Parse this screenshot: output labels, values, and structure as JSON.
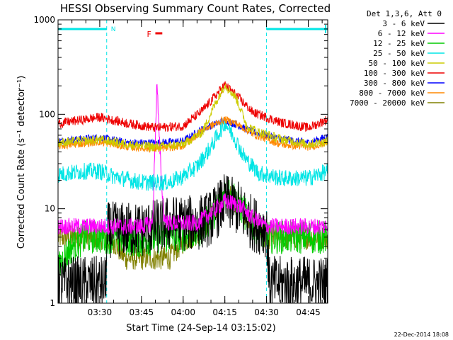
{
  "chart_data": {
    "type": "line",
    "title": "HESSI Observing Summary Count Rates, Corrected",
    "xlabel": "Start Time (24-Sep-14 03:15:02)",
    "ylabel": "Corrected Count Rate (s⁻¹ detector⁻¹)",
    "ylog": true,
    "ylim": [
      1,
      1000
    ],
    "xlim_minutes": [
      0,
      97
    ],
    "y_ticks": [
      "1",
      "10",
      "100",
      "1000"
    ],
    "x_ticks": [
      {
        "label": "03:30",
        "minutes": 15
      },
      {
        "label": "03:45",
        "minutes": 30
      },
      {
        "label": "04:00",
        "minutes": 45
      },
      {
        "label": "04:15",
        "minutes": 60
      },
      {
        "label": "04:30",
        "minutes": 75
      },
      {
        "label": "04:45",
        "minutes": 90
      }
    ],
    "legend_header": "Det 1,3,6, Att 0",
    "legend_position": "right",
    "night_intervals_minutes": [
      [
        0,
        17.5
      ],
      [
        75,
        97
      ]
    ],
    "night_label": "N",
    "flare_label": "F",
    "flare_interval_minutes": [
      35,
      37.5
    ],
    "series": [
      {
        "name": "3 - 6 keV",
        "color": "#000000",
        "noise": 0.3,
        "points": [
          [
            0,
            1.6
          ],
          [
            17,
            1.6
          ],
          [
            18,
            6
          ],
          [
            30,
            6
          ],
          [
            36,
            6.5
          ],
          [
            40,
            7
          ],
          [
            50,
            7
          ],
          [
            55,
            8
          ],
          [
            60,
            12
          ],
          [
            65,
            10
          ],
          [
            70,
            7
          ],
          [
            75,
            6
          ],
          [
            76,
            1.6
          ],
          [
            97,
            1.6
          ]
        ]
      },
      {
        "name": "6 - 12 keV",
        "color": "#ff00ff",
        "noise": 0.09,
        "points": [
          [
            0,
            6.5
          ],
          [
            30,
            6.5
          ],
          [
            34,
            7
          ],
          [
            35,
            60
          ],
          [
            35.6,
            230
          ],
          [
            36.3,
            60
          ],
          [
            37.5,
            15
          ],
          [
            38,
            8
          ],
          [
            40,
            7
          ],
          [
            50,
            7
          ],
          [
            55,
            9
          ],
          [
            60,
            12
          ],
          [
            65,
            11
          ],
          [
            70,
            8
          ],
          [
            75,
            6.5
          ],
          [
            97,
            6.5
          ]
        ]
      },
      {
        "name": "12 - 25 keV",
        "color": "#00cc00",
        "noise": 0.18,
        "points": [
          [
            0,
            2.2
          ],
          [
            2,
            3
          ],
          [
            5,
            4
          ],
          [
            10,
            5
          ],
          [
            15,
            5
          ],
          [
            20,
            5
          ],
          [
            30,
            4.5
          ],
          [
            36,
            5
          ],
          [
            40,
            5
          ],
          [
            50,
            5.5
          ],
          [
            55,
            8
          ],
          [
            60,
            15
          ],
          [
            63,
            14
          ],
          [
            67,
            9
          ],
          [
            72,
            6
          ],
          [
            75,
            5
          ],
          [
            97,
            5
          ]
        ]
      },
      {
        "name": "25 - 50 keV",
        "color": "#00e5e5",
        "noise": 0.09,
        "points": [
          [
            0,
            23
          ],
          [
            10,
            25
          ],
          [
            15,
            25
          ],
          [
            20,
            22
          ],
          [
            30,
            19
          ],
          [
            40,
            19
          ],
          [
            45,
            22
          ],
          [
            50,
            28
          ],
          [
            55,
            45
          ],
          [
            60,
            82
          ],
          [
            63,
            60
          ],
          [
            67,
            35
          ],
          [
            72,
            24
          ],
          [
            80,
            21
          ],
          [
            90,
            21
          ],
          [
            97,
            25
          ]
        ]
      },
      {
        "name": "50 - 100 keV",
        "color": "#cccc00",
        "noise": 0.05,
        "points": [
          [
            0,
            50
          ],
          [
            15,
            54
          ],
          [
            25,
            48
          ],
          [
            35,
            45
          ],
          [
            45,
            48
          ],
          [
            52,
            65
          ],
          [
            56,
            120
          ],
          [
            60,
            205
          ],
          [
            64,
            150
          ],
          [
            68,
            75
          ],
          [
            72,
            65
          ],
          [
            80,
            55
          ],
          [
            90,
            48
          ],
          [
            97,
            52
          ]
        ]
      },
      {
        "name": "100 - 300 keV",
        "color": "#ee0000",
        "noise": 0.05,
        "points": [
          [
            0,
            80
          ],
          [
            15,
            93
          ],
          [
            25,
            80
          ],
          [
            35,
            72
          ],
          [
            45,
            75
          ],
          [
            52,
            110
          ],
          [
            56,
            150
          ],
          [
            60,
            205
          ],
          [
            64,
            160
          ],
          [
            70,
            105
          ],
          [
            80,
            82
          ],
          [
            90,
            72
          ],
          [
            97,
            88
          ]
        ]
      },
      {
        "name": "300 - 800 keV",
        "color": "#0000ff",
        "noise": 0.04,
        "points": [
          [
            0,
            52
          ],
          [
            15,
            57
          ],
          [
            25,
            50
          ],
          [
            35,
            50
          ],
          [
            45,
            52
          ],
          [
            52,
            70
          ],
          [
            56,
            78
          ],
          [
            60,
            86
          ],
          [
            64,
            78
          ],
          [
            70,
            65
          ],
          [
            80,
            55
          ],
          [
            90,
            50
          ],
          [
            97,
            58
          ]
        ]
      },
      {
        "name": "800 - 7000 keV",
        "color": "#ff8800",
        "noise": 0.04,
        "points": [
          [
            0,
            46
          ],
          [
            15,
            51
          ],
          [
            25,
            45
          ],
          [
            35,
            43
          ],
          [
            45,
            46
          ],
          [
            52,
            68
          ],
          [
            56,
            78
          ],
          [
            60,
            88
          ],
          [
            64,
            80
          ],
          [
            70,
            62
          ],
          [
            80,
            48
          ],
          [
            90,
            45
          ],
          [
            97,
            50
          ]
        ]
      },
      {
        "name": "7000 - 20000 keV",
        "color": "#808000",
        "noise": 0.13,
        "points": [
          [
            0,
            5
          ],
          [
            15,
            5
          ],
          [
            20,
            4.5
          ],
          [
            24,
            3
          ],
          [
            28,
            3
          ],
          [
            32,
            3
          ],
          [
            38,
            3
          ],
          [
            40,
            3
          ],
          [
            45,
            4.5
          ],
          [
            50,
            5.5
          ],
          [
            55,
            8
          ],
          [
            60,
            14
          ],
          [
            63,
            13
          ],
          [
            67,
            9
          ],
          [
            72,
            6
          ],
          [
            75,
            5
          ],
          [
            97,
            5
          ]
        ]
      }
    ]
  },
  "footer": {
    "date_stamp": "22-Dec-2014 18:08"
  }
}
